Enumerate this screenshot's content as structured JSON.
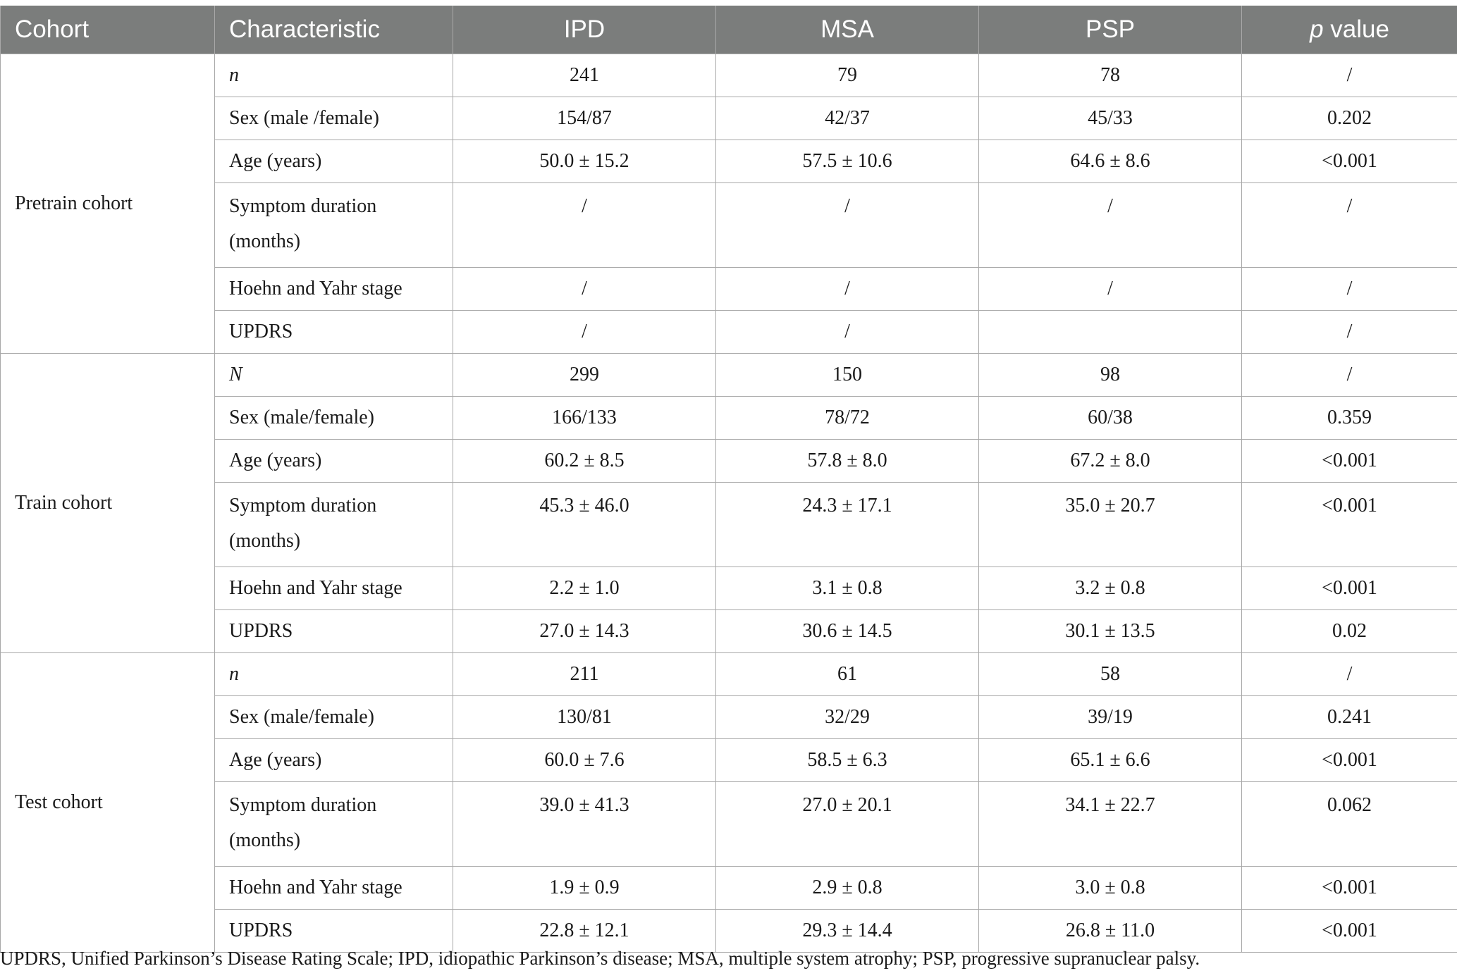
{
  "table": {
    "headers": [
      "Cohort",
      "Characteristic",
      "IPD",
      "MSA",
      "PSP",
      "p value"
    ],
    "header_p_italic": "p",
    "header_p_rest": " value",
    "groups": [
      {
        "cohort": "Pretrain cohort",
        "rows": [
          {
            "char": "n",
            "ipd": "241",
            "msa": "79",
            "psp": "78",
            "p": "/"
          },
          {
            "char": "Sex (male /female)",
            "ipd": "154/87",
            "msa": "42/37",
            "psp": "45/33",
            "p": "0.202"
          },
          {
            "char": "Age (years)",
            "ipd": "50.0 ± 15.2",
            "msa": "57.5 ± 10.6",
            "psp": "64.6 ± 8.6",
            "p": "<0.001"
          },
          {
            "char": "Symptom duration (months)",
            "ipd": "/",
            "msa": "/",
            "psp": "/",
            "p": "/"
          },
          {
            "char": "Hoehn and Yahr stage",
            "ipd": "/",
            "msa": "/",
            "psp": "/",
            "p": "/"
          },
          {
            "char": "UPDRS",
            "ipd": "/",
            "msa": "/",
            "psp": "",
            "p": "/"
          }
        ]
      },
      {
        "cohort": "Train cohort",
        "rows": [
          {
            "char": "N",
            "ipd": "299",
            "msa": "150",
            "psp": "98",
            "p": "/"
          },
          {
            "char": "Sex (male/female)",
            "ipd": "166/133",
            "msa": "78/72",
            "psp": "60/38",
            "p": "0.359"
          },
          {
            "char": "Age (years)",
            "ipd": "60.2 ± 8.5",
            "msa": "57.8 ± 8.0",
            "psp": "67.2 ± 8.0",
            "p": "<0.001"
          },
          {
            "char": "Symptom duration (months)",
            "ipd": "45.3 ± 46.0",
            "msa": "24.3 ± 17.1",
            "psp": "35.0 ± 20.7",
            "p": "<0.001"
          },
          {
            "char": "Hoehn and Yahr stage",
            "ipd": "2.2 ± 1.0",
            "msa": "3.1 ± 0.8",
            "psp": "3.2 ± 0.8",
            "p": "<0.001"
          },
          {
            "char": "UPDRS",
            "ipd": "27.0 ± 14.3",
            "msa": "30.6 ± 14.5",
            "psp": "30.1 ± 13.5",
            "p": "0.02"
          }
        ]
      },
      {
        "cohort": "Test cohort",
        "rows": [
          {
            "char": "n",
            "ipd": "211",
            "msa": "61",
            "psp": "58",
            "p": "/"
          },
          {
            "char": "Sex (male/female)",
            "ipd": "130/81",
            "msa": "32/29",
            "psp": "39/19",
            "p": "0.241"
          },
          {
            "char": "Age (years)",
            "ipd": "60.0 ± 7.6",
            "msa": "58.5 ± 6.3",
            "psp": "65.1 ± 6.6",
            "p": "<0.001"
          },
          {
            "char": "Symptom duration (months)",
            "ipd": "39.0 ± 41.3",
            "msa": "27.0 ± 20.1",
            "psp": "34.1 ± 22.7",
            "p": "0.062"
          },
          {
            "char": "Hoehn and Yahr stage",
            "ipd": "1.9 ± 0.9",
            "msa": "2.9 ± 0.8",
            "psp": "3.0 ± 0.8",
            "p": "<0.001"
          },
          {
            "char": "UPDRS",
            "ipd": "22.8 ± 12.1",
            "msa": "29.3 ± 14.4",
            "psp": "26.8 ± 11.0",
            "p": "<0.001"
          }
        ]
      }
    ]
  },
  "footnote": "UPDRS, Unified Parkinson’s Disease Rating Scale; IPD, idiopathic Parkinson’s disease; MSA, multiple system atrophy; PSP, progressive supranuclear palsy.",
  "colors": {
    "header_bg": "#7b7d7c",
    "header_text": "#ffffff",
    "grid": "#a8a8a8"
  }
}
